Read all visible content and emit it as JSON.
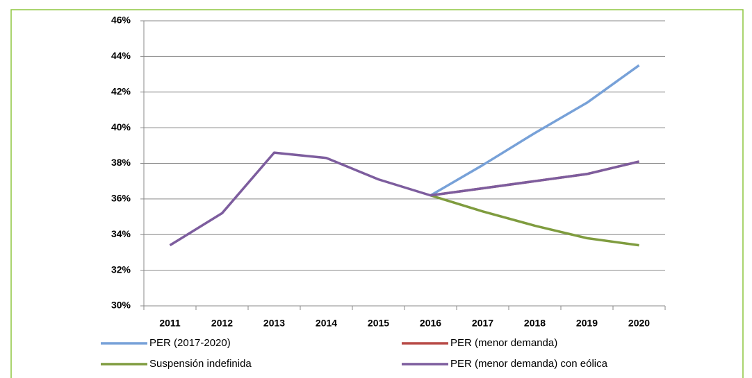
{
  "chart_data": {
    "type": "line",
    "categories": [
      "2011",
      "2012",
      "2013",
      "2014",
      "2015",
      "2016",
      "2017",
      "2018",
      "2019",
      "2020"
    ],
    "series": [
      {
        "name": "PER (2017-2020)",
        "color": "#77a1d8",
        "values": [
          null,
          null,
          null,
          null,
          null,
          36.2,
          37.9,
          39.7,
          41.4,
          43.5
        ]
      },
      {
        "name": "PER (menor demanda)",
        "color": "#b84a47",
        "values": [
          null,
          null,
          null,
          null,
          null,
          36.2,
          36.6,
          37.0,
          37.4,
          38.1
        ]
      },
      {
        "name": "Suspensión indefinida",
        "color": "#7f9c3f",
        "values": [
          null,
          null,
          null,
          null,
          null,
          36.2,
          35.3,
          34.5,
          33.8,
          33.4
        ]
      },
      {
        "name": "PER (menor demanda) con eólica",
        "color": "#7d5d9e",
        "values": [
          33.4,
          35.2,
          38.6,
          38.3,
          37.1,
          36.2,
          36.6,
          37.0,
          37.4,
          38.1
        ]
      }
    ],
    "ylim": [
      30,
      46
    ],
    "yticks": [
      {
        "value": 30,
        "label": "30%"
      },
      {
        "value": 32,
        "label": "32%"
      },
      {
        "value": 34,
        "label": "34%"
      },
      {
        "value": 36,
        "label": "36%"
      },
      {
        "value": 38,
        "label": "38%"
      },
      {
        "value": 40,
        "label": "40%"
      },
      {
        "value": 42,
        "label": "42%"
      },
      {
        "value": 44,
        "label": "44%"
      },
      {
        "value": 46,
        "label": "46%"
      }
    ],
    "grid": true,
    "legend": "bottom"
  }
}
